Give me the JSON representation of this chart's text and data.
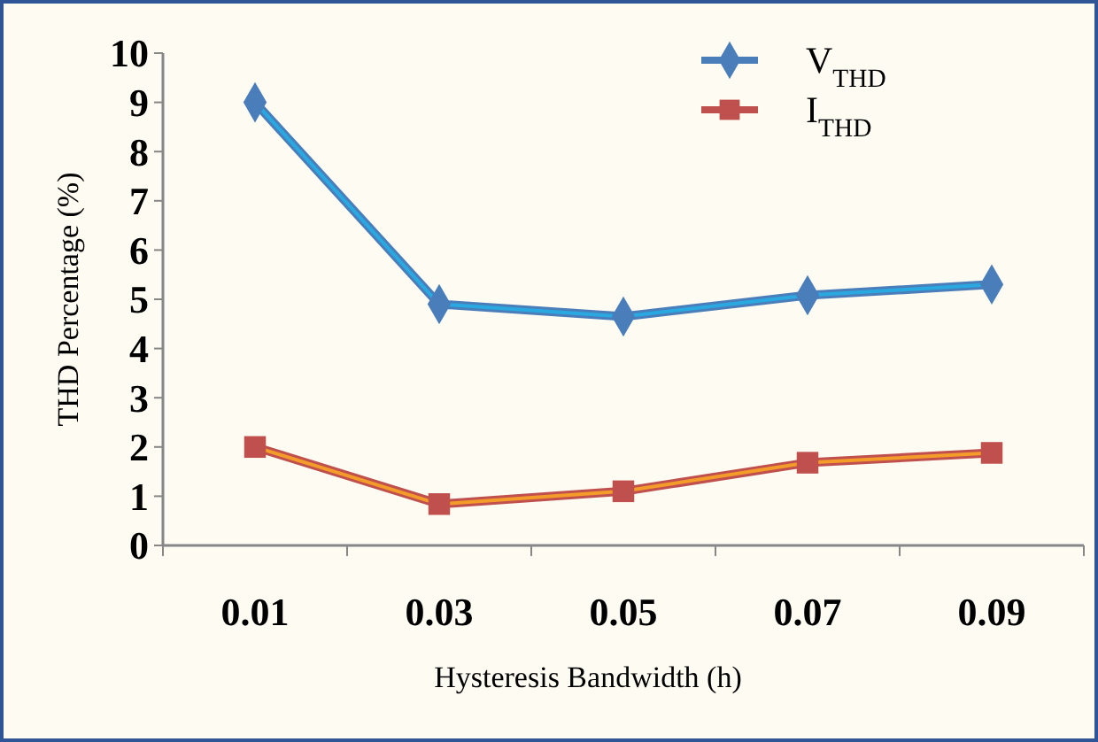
{
  "chart_data": {
    "type": "line",
    "xlabel": "Hysteresis Bandwidth (h)",
    "ylabel": "THD Percentage (%)",
    "categories": [
      "0.01",
      "0.03",
      "0.05",
      "0.07",
      "0.09"
    ],
    "series": [
      {
        "name": "V$_{THD}$",
        "color": "#4a7ebb",
        "marker": "diamond",
        "values": [
          9.0,
          4.9,
          4.65,
          5.08,
          5.3
        ]
      },
      {
        "name": "I$_{THD}$",
        "color": "#c0504d",
        "marker": "square",
        "values": [
          2.0,
          0.84,
          1.1,
          1.68,
          1.88
        ]
      }
    ],
    "ylim": [
      0,
      10
    ],
    "yticks": [
      0,
      1,
      2,
      3,
      4,
      5,
      6,
      7,
      8,
      9,
      10
    ],
    "grid": false,
    "legend": "top right"
  }
}
